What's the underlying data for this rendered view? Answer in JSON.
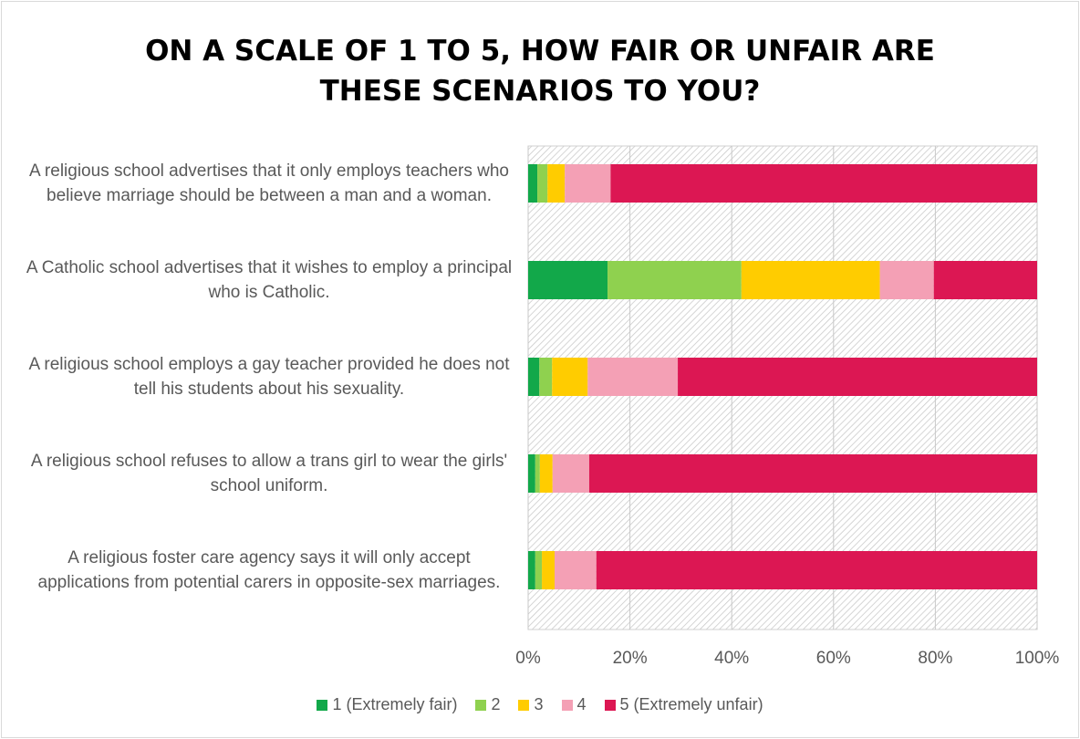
{
  "chart_data": {
    "type": "stacked_barh",
    "title": "ON A SCALE OF 1 TO 5, HOW FAIR OR UNFAIR ARE THESE SCENARIOS TO YOU?",
    "categories": [
      "A religious school advertises that it only employs teachers who believe marriage should be between a man and a woman.",
      "A Catholic school advertises that it wishes to employ a principal who is Catholic.",
      "A religious school employs a gay teacher provided he does not tell his students about his sexuality.",
      "A religious school refuses to allow a trans girl to wear the girls' school uniform.",
      "A religious foster care agency says it will only accept applications from potential carers in opposite-sex marriages."
    ],
    "series": [
      {
        "name": "1 (Extremely fair)",
        "color": "#12a84a",
        "values": [
          1.8,
          15.6,
          2.2,
          1.4,
          1.4
        ]
      },
      {
        "name": "2",
        "color": "#8fd14f",
        "values": [
          2.0,
          26.3,
          2.5,
          0.9,
          1.3
        ]
      },
      {
        "name": "3",
        "color": "#ffcc00",
        "values": [
          3.4,
          27.2,
          7.0,
          2.5,
          2.5
        ]
      },
      {
        "name": "4",
        "color": "#f4a0b5",
        "values": [
          9.0,
          10.6,
          17.7,
          7.2,
          8.2
        ]
      },
      {
        "name": "5 (Extremely unfair)",
        "color": "#dc1753",
        "values": [
          83.8,
          20.3,
          70.6,
          88.0,
          86.6
        ]
      }
    ],
    "xlim": [
      0,
      100
    ],
    "xticks": [
      {
        "value": 0,
        "label": "0%"
      },
      {
        "value": 20,
        "label": "20%"
      },
      {
        "value": 40,
        "label": "40%"
      },
      {
        "value": 60,
        "label": "60%"
      },
      {
        "value": 80,
        "label": "80%"
      },
      {
        "value": 100,
        "label": "100%"
      }
    ],
    "grid": true,
    "legend": "bottom"
  }
}
